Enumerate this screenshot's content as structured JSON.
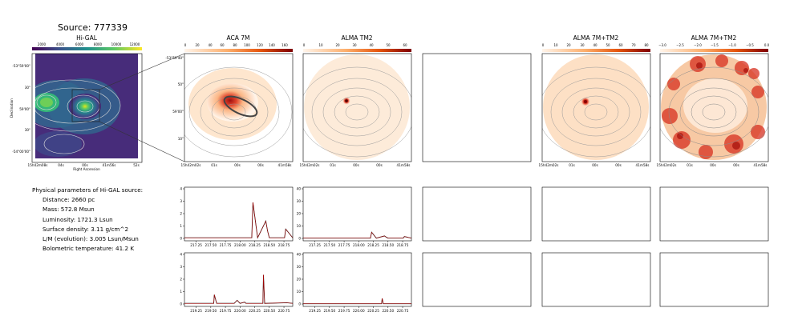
{
  "source_title": "Source: 777339",
  "panels": {
    "higal": {
      "title": "Hi-GAL",
      "cbar_ticks": [
        "2000",
        "4000",
        "6000",
        "8000",
        "10000",
        "12000"
      ],
      "yticks": [
        "-53°59'00\"",
        "30\"",
        "59'00\"",
        "30\"",
        "-54°00'00\""
      ],
      "xticks": [
        "15h42m08s",
        "04s",
        "00s",
        "41m56s",
        "52s"
      ],
      "xlabel": "Right Ascension",
      "ylabel": "Declination"
    },
    "aca": {
      "title": "ACA 7M",
      "cbar_ticks": [
        "0",
        "20",
        "40",
        "60",
        "80",
        "100",
        "120",
        "140",
        "160"
      ],
      "yticks": [
        "-53°59'40\"",
        "50\"",
        "59'00\"",
        "10\""
      ],
      "xticks": [
        "15h42m02s",
        "01s",
        "00s",
        "00s",
        "41m58s"
      ]
    },
    "tm2": {
      "title": "ALMA TM2",
      "cbar_ticks": [
        "0",
        "10",
        "20",
        "30",
        "40",
        "50",
        "60"
      ],
      "xticks": [
        "15h42m02s",
        "01s",
        "00s",
        "00s",
        "41m58s"
      ]
    },
    "combo": {
      "title": "ALMA 7M+TM2",
      "cbar_ticks": [
        "0",
        "10",
        "20",
        "30",
        "40",
        "50",
        "60",
        "70",
        "80"
      ],
      "xticks": [
        "15h42m02s",
        "01s",
        "00s",
        "00s",
        "41m58s"
      ]
    },
    "combo_log": {
      "title": "ALMA 7M+TM2",
      "cbar_ticks": [
        "−3.0",
        "−2.5",
        "−2.0",
        "−1.5",
        "−1.0",
        "−0.5",
        "0.0"
      ],
      "xticks": [
        "15h42m02s",
        "01s",
        "00s",
        "00s",
        "41m58s"
      ]
    }
  },
  "parameters": {
    "heading": "Physical parameters of Hi-GAL source:",
    "lines": [
      "Distance: 2660 pc",
      "Mass: 572.8 Msun",
      "Luminosity: 1721.3 Lsun",
      "Surface density: 3.11 g/cm^2",
      "L/M (evolution): 3.005 Lsun/Msun",
      "Bolometric temperature: 41.2 K"
    ]
  },
  "chart_data": [
    {
      "type": "line",
      "panel": "spectrum-aca-upper",
      "x_ticks": [
        "217.25",
        "217.50",
        "217.75",
        "218.00",
        "218.25",
        "218.50",
        "218.75"
      ],
      "y_ticks": [
        "0",
        "1",
        "2",
        "3",
        "4"
      ],
      "ylim": [
        0,
        4
      ],
      "xlim": [
        217.05,
        218.9
      ],
      "x": [
        217.05,
        217.3,
        217.6,
        217.9,
        218.1,
        218.2,
        218.22,
        218.3,
        218.44,
        218.47,
        218.5,
        218.76,
        218.78,
        218.9
      ],
      "y": [
        0.05,
        0.05,
        0.05,
        0.05,
        0.05,
        0.05,
        2.9,
        0.05,
        1.4,
        0.6,
        0.05,
        0.05,
        0.75,
        0.05
      ]
    },
    {
      "type": "line",
      "panel": "spectrum-tm2-upper",
      "x_ticks": [
        "217.25",
        "217.50",
        "217.75",
        "218.00",
        "218.25",
        "218.50",
        "218.75"
      ],
      "y_ticks": [
        "0",
        "10",
        "20",
        "30",
        "40"
      ],
      "ylim": [
        0,
        40
      ],
      "xlim": [
        217.05,
        218.9
      ],
      "x": [
        217.05,
        217.5,
        218.0,
        218.2,
        218.22,
        218.3,
        218.44,
        218.47,
        218.5,
        218.76,
        218.78,
        218.9
      ],
      "y": [
        0.2,
        0.2,
        0.2,
        0.2,
        5.0,
        0.2,
        2.0,
        1.0,
        0.2,
        0.2,
        1.5,
        0.2
      ]
    },
    {
      "type": "line",
      "panel": "spectrum-aca-lower",
      "x_ticks": [
        "219.25",
        "219.50",
        "219.75",
        "220.00",
        "220.25",
        "220.50",
        "220.75"
      ],
      "y_ticks": [
        "0",
        "1",
        "2",
        "3",
        "4"
      ],
      "ylim": [
        0,
        4
      ],
      "xlim": [
        219.05,
        220.9
      ],
      "x": [
        219.05,
        219.55,
        219.56,
        219.6,
        219.9,
        219.95,
        220.0,
        220.08,
        220.1,
        220.39,
        220.4,
        220.42,
        220.8,
        220.9
      ],
      "y": [
        0.05,
        0.05,
        0.75,
        0.05,
        0.05,
        0.3,
        0.05,
        0.15,
        0.05,
        0.05,
        2.35,
        0.05,
        0.1,
        0.05
      ]
    },
    {
      "type": "line",
      "panel": "spectrum-tm2-lower",
      "x_ticks": [
        "219.25",
        "219.50",
        "219.75",
        "220.00",
        "220.25",
        "220.50",
        "220.75"
      ],
      "y_ticks": [
        "0",
        "10",
        "20",
        "30",
        "40"
      ],
      "ylim": [
        0,
        40
      ],
      "xlim": [
        219.05,
        220.9
      ],
      "x": [
        219.05,
        219.6,
        219.9,
        220.39,
        220.4,
        220.42,
        220.9
      ],
      "y": [
        0.2,
        0.2,
        0.2,
        0.2,
        4.5,
        0.2,
        0.2
      ]
    }
  ]
}
